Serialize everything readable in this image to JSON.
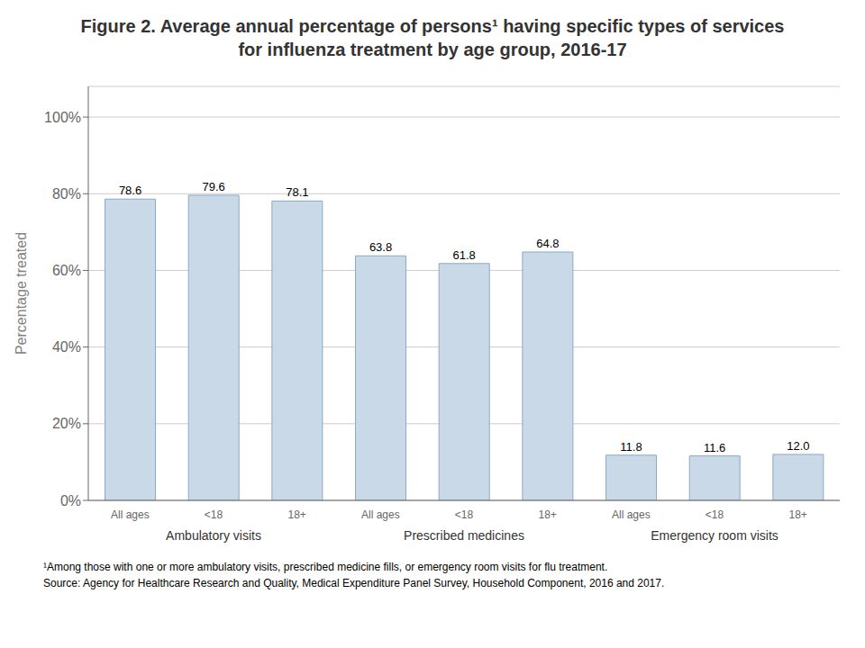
{
  "chart_data": {
    "type": "bar",
    "title": "Figure 2. Average annual percentage of persons¹ having specific types of services for influenza treatment by age group, 2016-17",
    "categories": [
      "All ages",
      "<18",
      "18+",
      "All ages",
      "<18",
      "18+",
      "All ages",
      "<18",
      "18+"
    ],
    "group_labels": [
      "Ambulatory visits",
      "Prescribed medicines",
      "Emergency room visits"
    ],
    "values": [
      78.6,
      79.6,
      78.1,
      63.8,
      61.8,
      64.8,
      11.8,
      11.6,
      12.0
    ],
    "value_labels": [
      "78.6",
      "79.6",
      "78.1",
      "63.8",
      "61.8",
      "64.8",
      "11.8",
      "11.6",
      "12.0"
    ],
    "data_labels": true,
    "color": "#C9D9E8",
    "ylabel": "Percentage treated",
    "ylim": [
      0,
      108
    ],
    "yticks": [
      {
        "value": 0,
        "label": "0%"
      },
      {
        "value": 20,
        "label": "20%"
      },
      {
        "value": 40,
        "label": "40%"
      },
      {
        "value": 60,
        "label": "60%"
      },
      {
        "value": 80,
        "label": "80%"
      },
      {
        "value": 100,
        "label": "100%"
      }
    ],
    "grid": true,
    "annotations": [
      "¹Among those with one or more ambulatory visits, prescribed medicine fills, or emergency room visits for flu treatment.",
      "Source: Agency for Healthcare Research and Quality, Medical Expenditure Panel Survey, Household Component, 2016 and 2017."
    ]
  }
}
